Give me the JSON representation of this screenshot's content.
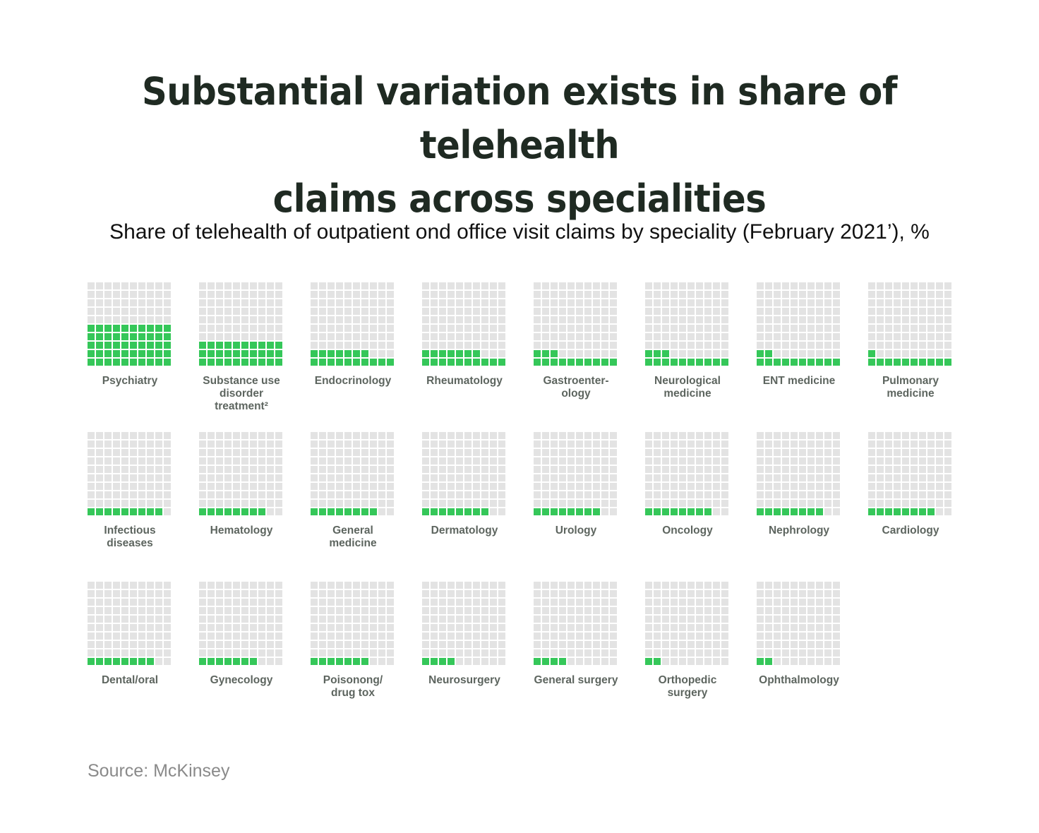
{
  "title_line1": "Substantial variation exists in share of telehealth",
  "title_line2": "claims across specialities",
  "subtitle": "Share of telehealth of outpatient ond office visit claims by speciality (February 2021’), %",
  "source": "Source: McKinsey",
  "colors": {
    "filled": "#35c759",
    "empty": "#e3e3e3",
    "title": "#1f2a22",
    "label": "#5d655f"
  },
  "chart_data": {
    "type": "waffle",
    "unit": "%",
    "grid_cells": 100,
    "items": [
      {
        "label": "Psychiatry",
        "value": 50
      },
      {
        "label": "Substance use disorder treatment²",
        "value": 30
      },
      {
        "label": "Endocrinology",
        "value": 17
      },
      {
        "label": "Rheumatology",
        "value": 17
      },
      {
        "label": "Gastroenter-ology",
        "value": 13
      },
      {
        "label": "Neurological medicine",
        "value": 13
      },
      {
        "label": "ENT medicine",
        "value": 12
      },
      {
        "label": "Pulmonary medicine",
        "value": 11
      },
      {
        "label": "Infectious diseases",
        "value": 9
      },
      {
        "label": "Hematology",
        "value": 8
      },
      {
        "label": "General medicine",
        "value": 8
      },
      {
        "label": "Dermatology",
        "value": 8
      },
      {
        "label": "Urology",
        "value": 8
      },
      {
        "label": "Oncology",
        "value": 8
      },
      {
        "label": "Nephrology",
        "value": 8
      },
      {
        "label": "Cardiology",
        "value": 8
      },
      {
        "label": "Dental/oral",
        "value": 8
      },
      {
        "label": "Gynecology",
        "value": 7
      },
      {
        "label": "Poisonong/ drug tox",
        "value": 7
      },
      {
        "label": "Neurosurgery",
        "value": 4
      },
      {
        "label": "General surgery",
        "value": 4
      },
      {
        "label": "Orthopedic surgery",
        "value": 2
      },
      {
        "label": "Ophthalmology",
        "value": 2
      }
    ]
  }
}
